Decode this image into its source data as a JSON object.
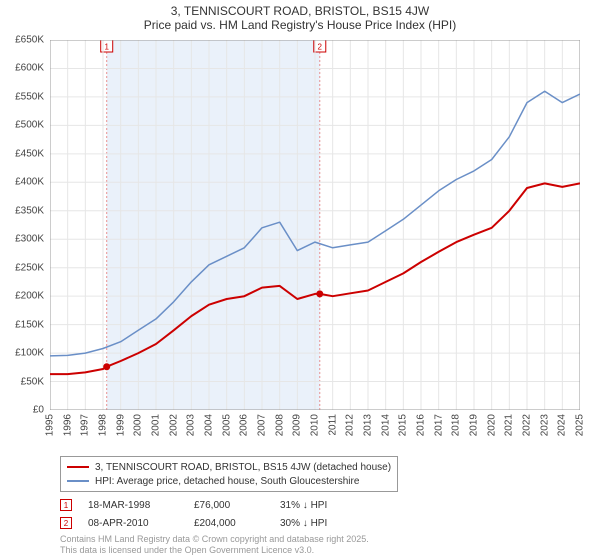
{
  "title": "3, TENNISCOURT ROAD, BRISTOL, BS15 4JW",
  "subtitle": "Price paid vs. HM Land Registry's House Price Index (HPI)",
  "title_fontsize": 12,
  "subtitle_fontsize": 12,
  "chart": {
    "type": "line",
    "background_color": "#ffffff",
    "grid_color": "#e6e6e6",
    "axis_color": "#999999",
    "x": {
      "min": 1995,
      "max": 2025,
      "ticks": [
        1995,
        1996,
        1997,
        1998,
        1999,
        2000,
        2001,
        2002,
        2003,
        2004,
        2005,
        2006,
        2007,
        2008,
        2009,
        2010,
        2011,
        2012,
        2013,
        2014,
        2015,
        2016,
        2017,
        2018,
        2019,
        2020,
        2021,
        2022,
        2023,
        2024,
        2025
      ],
      "label_fontsize": 10,
      "label_rotation": -90
    },
    "y": {
      "min": 0,
      "max": 650000,
      "ticks": [
        0,
        50000,
        100000,
        150000,
        200000,
        250000,
        300000,
        350000,
        400000,
        450000,
        500000,
        550000,
        600000,
        650000
      ],
      "tick_labels": [
        "£0",
        "£50K",
        "£100K",
        "£150K",
        "£200K",
        "£250K",
        "£300K",
        "£350K",
        "£400K",
        "£450K",
        "£500K",
        "£550K",
        "£600K",
        "£650K"
      ],
      "label_fontsize": 10
    },
    "sale_bands": [
      {
        "x": 1998.21,
        "color": "#d7e8f7",
        "stripe_color": "#e89090",
        "marker_label": "1",
        "marker_border": "#cc0000"
      },
      {
        "x": 2010.27,
        "color": "#d7e8f7",
        "stripe_color": "#e89090",
        "marker_label": "2",
        "marker_border": "#cc0000"
      }
    ],
    "band_fill": {
      "from": 1998.21,
      "to": 2010.27,
      "color": "#eaf1fa"
    },
    "series": [
      {
        "name": "subject",
        "label": "3, TENNISCOURT ROAD, BRISTOL, BS15 4JW (detached house)",
        "color": "#cc0000",
        "line_width": 2,
        "data": [
          [
            1995,
            63000
          ],
          [
            1996,
            63000
          ],
          [
            1997,
            66000
          ],
          [
            1998,
            72000
          ],
          [
            1998.21,
            76000
          ],
          [
            1999,
            86000
          ],
          [
            2000,
            100000
          ],
          [
            2001,
            116000
          ],
          [
            2002,
            140000
          ],
          [
            2003,
            165000
          ],
          [
            2004,
            185000
          ],
          [
            2005,
            195000
          ],
          [
            2006,
            200000
          ],
          [
            2007,
            215000
          ],
          [
            2008,
            218000
          ],
          [
            2009,
            195000
          ],
          [
            2010,
            204000
          ],
          [
            2010.27,
            204000
          ],
          [
            2011,
            200000
          ],
          [
            2012,
            205000
          ],
          [
            2013,
            210000
          ],
          [
            2014,
            225000
          ],
          [
            2015,
            240000
          ],
          [
            2016,
            260000
          ],
          [
            2017,
            278000
          ],
          [
            2018,
            295000
          ],
          [
            2019,
            308000
          ],
          [
            2020,
            320000
          ],
          [
            2021,
            350000
          ],
          [
            2022,
            390000
          ],
          [
            2023,
            398000
          ],
          [
            2024,
            392000
          ],
          [
            2025,
            398000
          ]
        ],
        "sale_markers": [
          {
            "x": 1998.21,
            "y": 76000
          },
          {
            "x": 2010.27,
            "y": 204000
          }
        ]
      },
      {
        "name": "hpi",
        "label": "HPI: Average price, detached house, South Gloucestershire",
        "color": "#6a8fc7",
        "line_width": 1.5,
        "data": [
          [
            1995,
            95000
          ],
          [
            1996,
            96000
          ],
          [
            1997,
            100000
          ],
          [
            1998,
            108000
          ],
          [
            1999,
            120000
          ],
          [
            2000,
            140000
          ],
          [
            2001,
            160000
          ],
          [
            2002,
            190000
          ],
          [
            2003,
            225000
          ],
          [
            2004,
            255000
          ],
          [
            2005,
            270000
          ],
          [
            2006,
            285000
          ],
          [
            2007,
            320000
          ],
          [
            2008,
            330000
          ],
          [
            2009,
            280000
          ],
          [
            2010,
            295000
          ],
          [
            2011,
            285000
          ],
          [
            2012,
            290000
          ],
          [
            2013,
            295000
          ],
          [
            2014,
            315000
          ],
          [
            2015,
            335000
          ],
          [
            2016,
            360000
          ],
          [
            2017,
            385000
          ],
          [
            2018,
            405000
          ],
          [
            2019,
            420000
          ],
          [
            2020,
            440000
          ],
          [
            2021,
            480000
          ],
          [
            2022,
            540000
          ],
          [
            2023,
            560000
          ],
          [
            2024,
            540000
          ],
          [
            2025,
            555000
          ]
        ]
      }
    ]
  },
  "legend": {
    "border_color": "#999999",
    "fontsize": 10,
    "items": [
      {
        "color": "#cc0000",
        "label": "3, TENNISCOURT ROAD, BRISTOL, BS15 4JW (detached house)"
      },
      {
        "color": "#6a8fc7",
        "label": "HPI: Average price, detached house, South Gloucestershire"
      }
    ]
  },
  "sales": [
    {
      "marker": "1",
      "marker_border": "#cc0000",
      "date": "18-MAR-1998",
      "price": "£76,000",
      "delta": "31% ↓ HPI"
    },
    {
      "marker": "2",
      "marker_border": "#cc0000",
      "date": "08-APR-2010",
      "price": "£204,000",
      "delta": "30% ↓ HPI"
    }
  ],
  "copyright": {
    "line1": "Contains HM Land Registry data © Crown copyright and database right 2025.",
    "line2": "This data is licensed under the Open Government Licence v3.0.",
    "color": "#999999",
    "fontsize": 9
  }
}
